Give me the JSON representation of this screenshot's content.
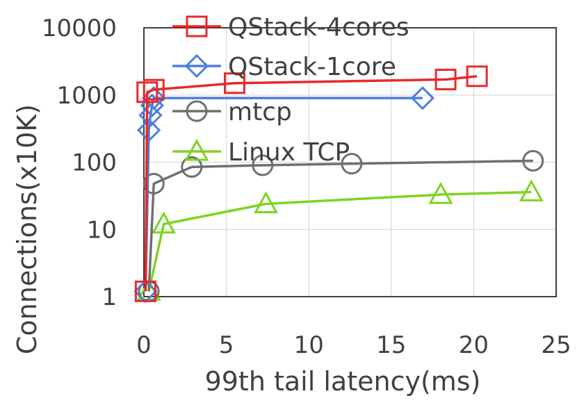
{
  "chart_data": {
    "type": "line",
    "title": "",
    "xlabel": "99th tail latency(ms)",
    "ylabel": "Connections(x10K)",
    "xlim": [
      0,
      25
    ],
    "ylim": [
      1,
      10000
    ],
    "yscale": "log",
    "grid": true,
    "legend_position": "top-left",
    "x_ticks": [
      "0",
      "5",
      "10",
      "15",
      "20",
      "25"
    ],
    "y_ticks": [
      "1",
      "10",
      "100",
      "1000",
      "10000"
    ],
    "series": [
      {
        "name": "QStack-4cores",
        "color": "#e8292a",
        "marker": "square",
        "x": [
          0.1,
          0.2,
          0.6,
          5.5,
          18.3,
          20.2
        ],
        "y": [
          1.2,
          1100,
          1200,
          1500,
          1700,
          1900
        ]
      },
      {
        "name": "QStack-1core",
        "color": "#4a7fdc",
        "marker": "diamond",
        "x": [
          0.1,
          0.3,
          0.4,
          0.5,
          0.6,
          16.9
        ],
        "y": [
          1.2,
          300,
          500,
          700,
          900,
          900
        ]
      },
      {
        "name": "mtcp",
        "color": "#6f6f6f",
        "marker": "circle",
        "x": [
          0.3,
          0.6,
          2.9,
          7.2,
          12.6,
          23.6
        ],
        "y": [
          1.2,
          48,
          85,
          90,
          95,
          105
        ]
      },
      {
        "name": "Linux TCP",
        "color": "#7ed321",
        "marker": "triangle",
        "x": [
          0.3,
          1.2,
          7.4,
          18.0,
          23.5
        ],
        "y": [
          1.2,
          12,
          24,
          33,
          36
        ]
      }
    ]
  }
}
